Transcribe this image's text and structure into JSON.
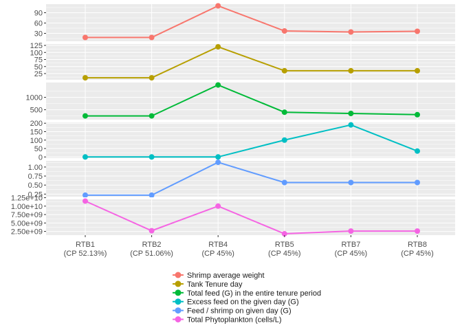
{
  "chart_data": {
    "type": "line",
    "layout": "stacked-facets",
    "categories": [
      "RTB1\n(CP 52.13%)",
      "RTB2\n(CP 51.06%)",
      "RTB4\n(CP 45%)",
      "RTB5\n(CP 45%)",
      "RTB7\n(CP 45%)",
      "RTB8\n(CP 45%)"
    ],
    "legend_position": "bottom",
    "grid": true,
    "series": [
      {
        "name": "Shrimp average weight",
        "color": "#F8766D",
        "values": [
          18,
          18,
          110,
          37,
          34,
          36
        ],
        "ylim": [
          7,
          115
        ],
        "yticks": [
          30,
          60,
          90
        ],
        "ytick_labels": [
          "30",
          "60",
          "90"
        ]
      },
      {
        "name": "Tank Tenure day",
        "color": "#B79F00",
        "values": [
          10,
          10,
          120,
          35,
          35,
          35
        ],
        "ylim": [
          3,
          130
        ],
        "yticks": [
          25,
          50,
          75,
          100,
          125
        ],
        "ytick_labels": [
          "25",
          "50",
          "75",
          "100",
          "125"
        ]
      },
      {
        "name": "Total feed (G) in the entire tenure period",
        "color": "#00BA38",
        "values": [
          250,
          250,
          1500,
          400,
          350,
          300
        ],
        "ylim": [
          100,
          1600
        ],
        "yticks": [
          500,
          1000
        ],
        "ytick_labels": [
          "500",
          "1000"
        ]
      },
      {
        "name": "Excess feed on the given day (G)",
        "color": "#00BFC4",
        "values": [
          0,
          0,
          0,
          100,
          190,
          35
        ],
        "ylim": [
          -7,
          205
        ],
        "yticks": [
          0,
          50,
          100,
          150,
          200
        ],
        "ytick_labels": [
          "0",
          "50",
          "100",
          "150",
          "200"
        ]
      },
      {
        "name": "Feed / shrimp on given day (G)",
        "color": "#619CFF",
        "values": [
          0.22,
          0.22,
          1.13,
          0.57,
          0.57,
          0.57
        ],
        "ylim": [
          0.18,
          1.17
        ],
        "yticks": [
          0.25,
          0.5,
          0.75,
          1.0
        ],
        "ytick_labels": [
          "0.25",
          "0.50",
          "0.75",
          "1.00"
        ]
      },
      {
        "name": "Total Phytoplankton (cells/L)",
        "color": "#F564E3",
        "values": [
          11500000000,
          2700000000,
          10000000000,
          1800000000,
          2600000000,
          2600000000
        ],
        "ylim": [
          1400000000,
          12000000000
        ],
        "yticks": [
          2500000000,
          5000000000,
          7500000000,
          10000000000,
          12500000000
        ],
        "ytick_labels": [
          "2.50e+09",
          "5.00e+09",
          "7.50e+09",
          "1.00e+10",
          "1.25e+10"
        ]
      }
    ]
  }
}
